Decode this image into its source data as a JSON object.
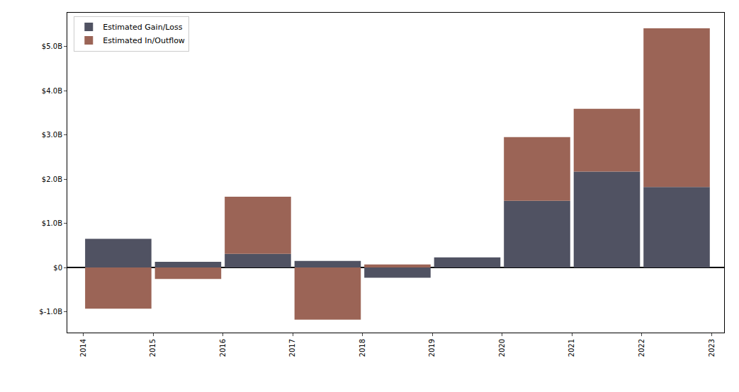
{
  "chart_data": {
    "type": "bar",
    "stacked": true,
    "grid": false,
    "legend": "upper left",
    "x": [
      2014,
      2015,
      2016,
      2017,
      2018,
      2019,
      2020,
      2021,
      2022
    ],
    "series": [
      {
        "name": "Estimated Gain/Loss",
        "color": "#505262",
        "values": [
          0.65,
          0.13,
          0.31,
          0.15,
          -0.23,
          0.23,
          1.51,
          2.17,
          1.82
        ]
      },
      {
        "name": "Estimated In/Outflow",
        "color": "#9b6456",
        "values": [
          -0.93,
          -0.26,
          1.29,
          -1.18,
          0.07,
          0,
          1.44,
          1.42,
          3.59
        ]
      }
    ],
    "xlim": [
      2013.77,
      2023.18
    ],
    "xticks": [
      2014,
      2015,
      2016,
      2017,
      2018,
      2019,
      2020,
      2021,
      2022,
      2023
    ],
    "ylim": [
      -1.47,
      5.76
    ],
    "yticks": [
      {
        "value": -1,
        "label": "$-1.0B"
      },
      {
        "value": 0,
        "label": "$0"
      },
      {
        "value": 1,
        "label": "$1.0B"
      },
      {
        "value": 2,
        "label": "$2.0B"
      },
      {
        "value": 3,
        "label": "$3.0B"
      },
      {
        "value": 4,
        "label": "$4.0B"
      },
      {
        "value": 5,
        "label": "$5.0B"
      }
    ]
  }
}
